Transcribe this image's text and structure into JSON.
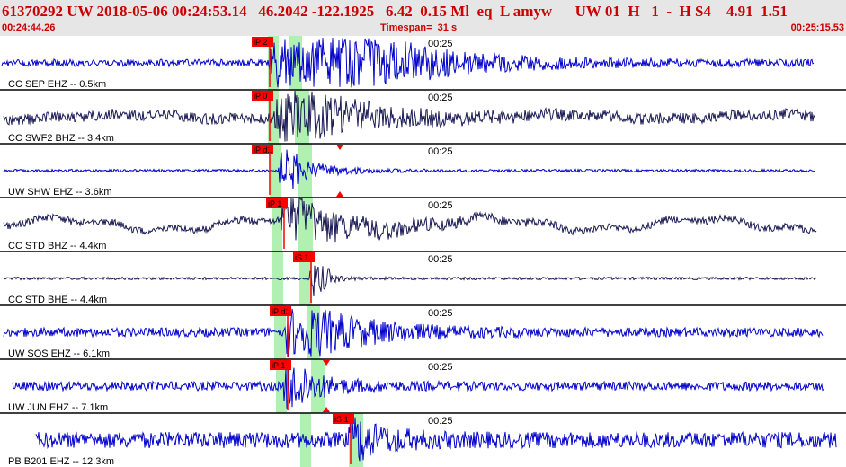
{
  "header": {
    "title": "61370292 UW 2018-05-06 00:24:53.14   46.2042 -122.1925   6.42  0.15 Ml  eq  L amyw      UW 01  H   1  -  H S4    4.91  1.51",
    "start_time": "00:24:44.26",
    "timespan": "Timespan=  31 s",
    "end_time": "00:25:15.53"
  },
  "colors": {
    "trace_blue": "#0000cc",
    "trace_navy": "#1a1a55",
    "pick_red": "#ff0000",
    "window_green": "#b0f0b0",
    "header_bg": "#e6e6e6",
    "header_text": "#cc0000"
  },
  "traces": [
    {
      "label": "CC SEP EHZ -- 0.5km",
      "time_tick": "00:25",
      "pick": "iP 2",
      "color": "blue"
    },
    {
      "label": "CC SWF2 BHZ -- 3.4km",
      "time_tick": "00:25",
      "pick": "iP 0",
      "color": "navy"
    },
    {
      "label": "UW SHW EHZ -- 3.6km",
      "time_tick": "00:25",
      "pick": "iP d1",
      "color": "blue"
    },
    {
      "label": "CC STD BHZ -- 4.4km",
      "time_tick": "00:25",
      "pick": "iP 1",
      "color": "navy"
    },
    {
      "label": "CC STD BHE -- 4.4km",
      "time_tick": "00:25",
      "pick": "iS 1",
      "color": "navy"
    },
    {
      "label": "UW SOS EHZ -- 6.1km",
      "time_tick": "00:25",
      "pick": "iP d1",
      "color": "blue"
    },
    {
      "label": "UW JUN EHZ -- 7.1km",
      "time_tick": "00:25",
      "pick": "iP 1",
      "color": "blue"
    },
    {
      "label": "PB B201 EHZ -- 12.3km",
      "time_tick": "00:25",
      "pick": "iS 1",
      "color": "blue"
    }
  ]
}
